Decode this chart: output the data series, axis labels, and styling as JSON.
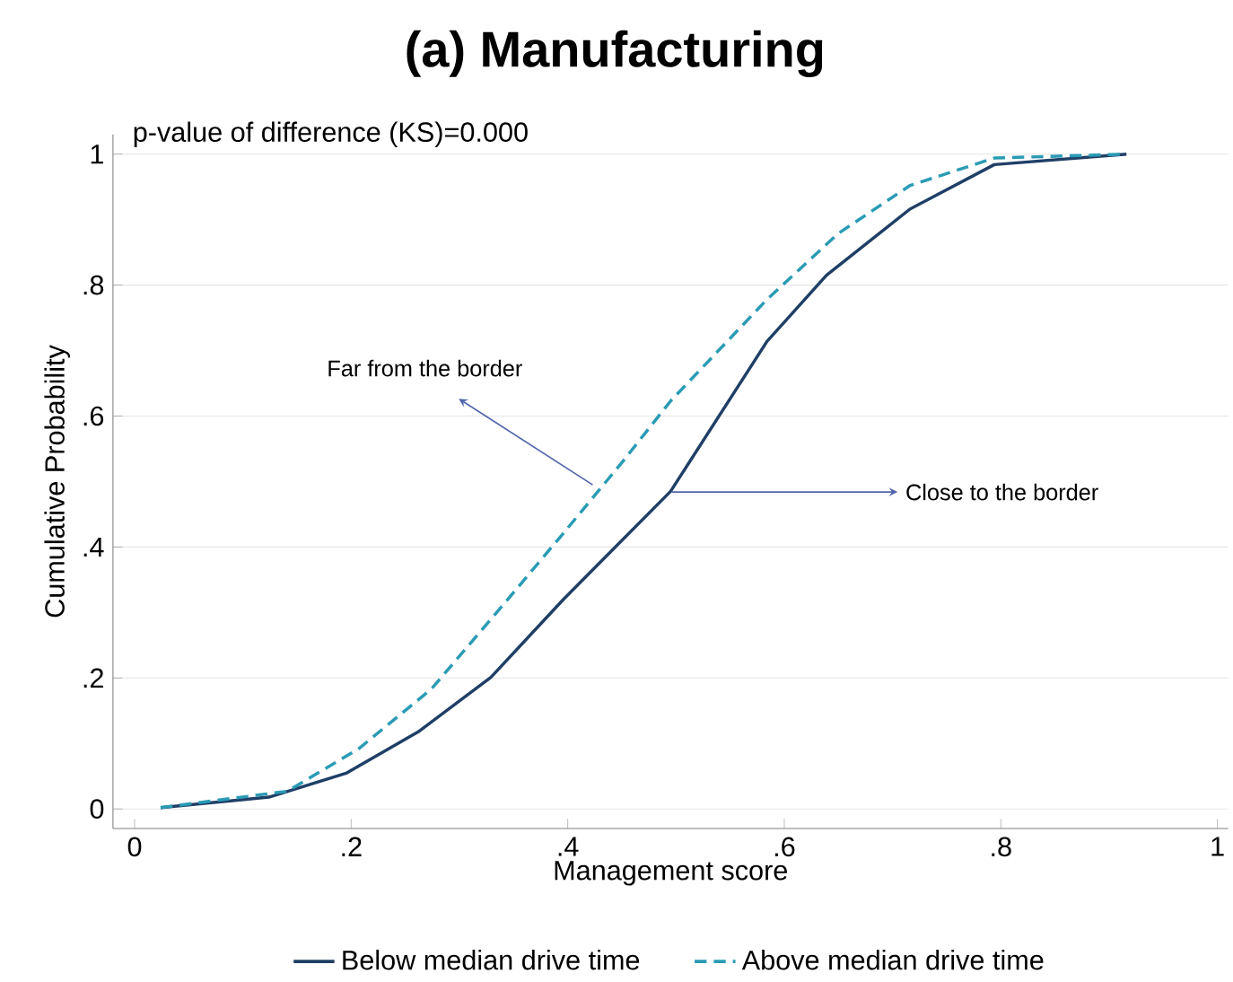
{
  "chart_data": {
    "type": "line",
    "title": "(a) Manufacturing",
    "xlabel": "Management score",
    "ylabel": "Cumulative Probability",
    "xlim": [
      -0.02,
      1.01
    ],
    "ylim": [
      -0.03,
      1.03
    ],
    "xticks": [
      0,
      {
        "value": 0.2,
        "label": ".2"
      },
      {
        "value": 0.4,
        "label": ".4"
      },
      {
        "value": 0.6,
        "label": ".6"
      },
      {
        "value": 0.8,
        "label": ".8"
      },
      1
    ],
    "yticks": [
      0,
      {
        "value": 0.2,
        "label": ".2"
      },
      {
        "value": 0.4,
        "label": ".4"
      },
      {
        "value": 0.6,
        "label": ".6"
      },
      {
        "value": 0.8,
        "label": ".8"
      },
      1
    ],
    "grid": "y",
    "legend": "bottom",
    "series": [
      {
        "name": "Below median drive time",
        "color": "#1f3f66",
        "line_style": "solid",
        "x": [
          0.024,
          0.124,
          0.196,
          0.263,
          0.329,
          0.396,
          0.462,
          0.495,
          0.584,
          0.639,
          0.716,
          0.794,
          0.916
        ],
        "values": [
          0.002,
          0.018,
          0.055,
          0.119,
          0.201,
          0.32,
          0.43,
          0.485,
          0.714,
          0.815,
          0.916,
          0.984,
          1.0
        ]
      },
      {
        "name": "Above median drive time",
        "color": "#2a9bb5",
        "line_style": "dashed",
        "x": [
          0.024,
          0.141,
          0.207,
          0.274,
          0.34,
          0.396,
          0.451,
          0.495,
          0.584,
          0.65,
          0.716,
          0.794,
          0.916
        ],
        "values": [
          0.002,
          0.027,
          0.092,
          0.183,
          0.311,
          0.421,
          0.531,
          0.623,
          0.778,
          0.879,
          0.952,
          0.994,
          1.0
        ]
      }
    ],
    "annotations": [
      "p-value of difference (KS)=0.000",
      {
        "text": "Far from the border",
        "x": 0.423,
        "y": 0.495
      },
      {
        "text": "Close to the border",
        "x": 0.496,
        "y": 0.484
      }
    ]
  }
}
